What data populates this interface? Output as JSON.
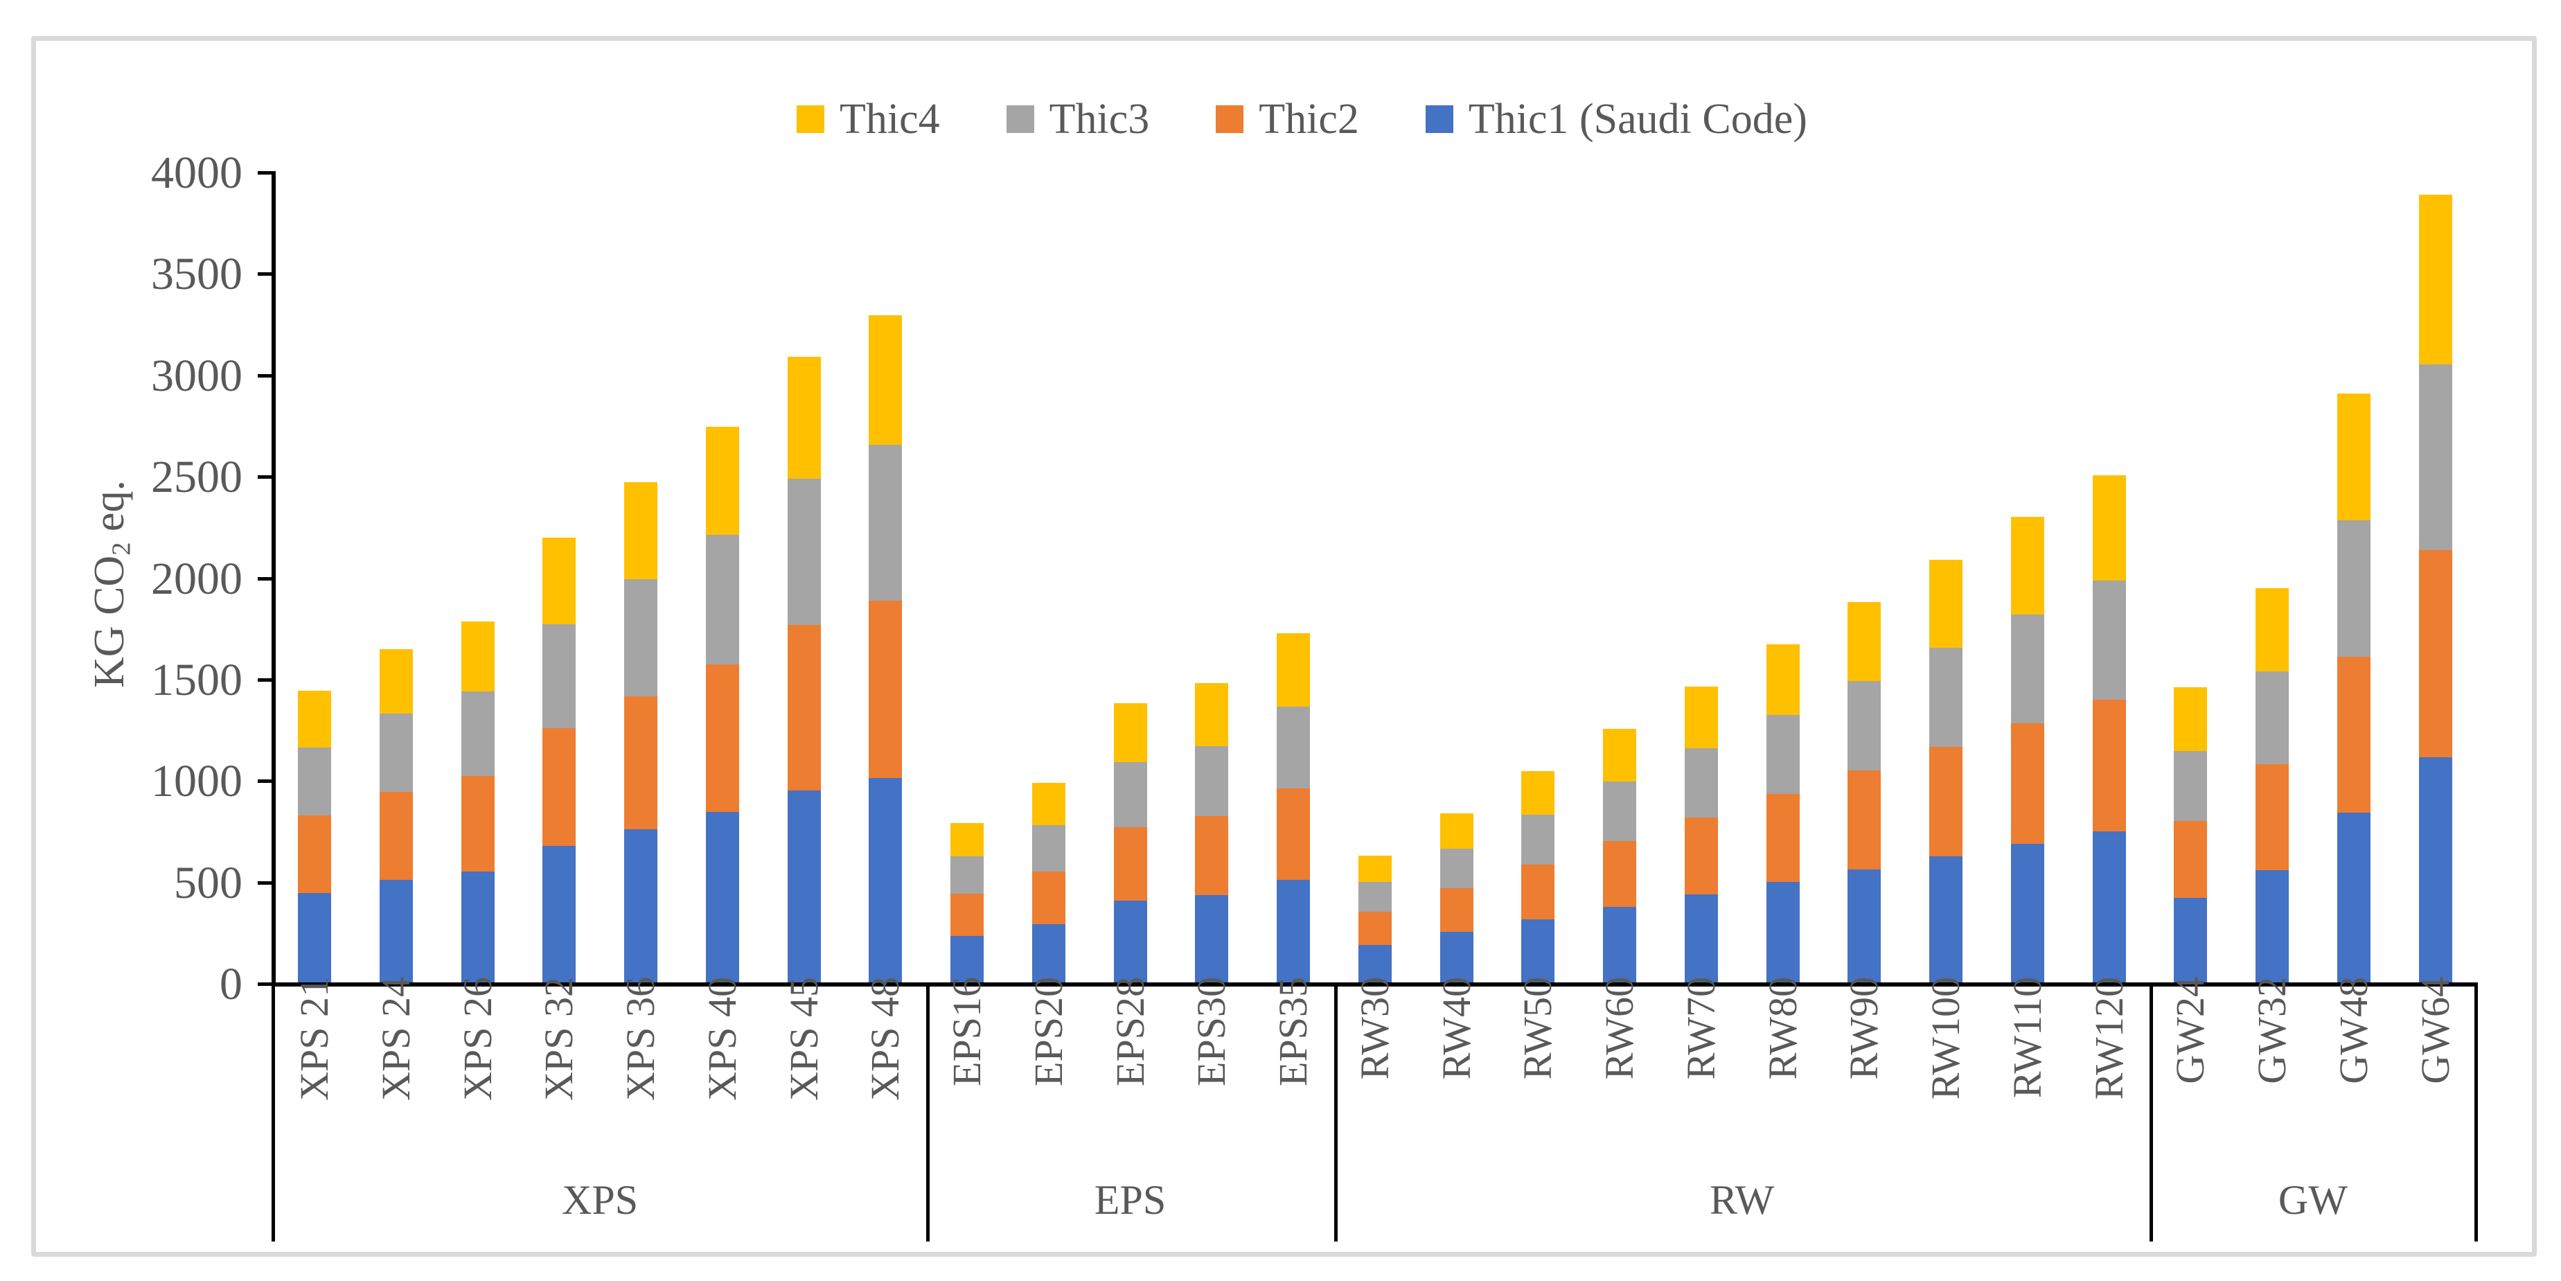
{
  "y_axis": {
    "title": "KG CO₂ eq.",
    "title_parts": [
      "KG CO",
      "2",
      " eq."
    ],
    "ticks": [
      "0",
      "500",
      "1000",
      "1500",
      "2000",
      "2500",
      "3000",
      "3500",
      "4000"
    ],
    "min": 0,
    "max": 4000,
    "tick_step": 500
  },
  "legend": [
    {
      "label": "Thic4",
      "color": "#FFC000"
    },
    {
      "label": "Thic3",
      "color": "#A5A5A5"
    },
    {
      "label": "Thic2",
      "color": "#ED7D31"
    },
    {
      "label": "Thic1 (Saudi Code)",
      "color": "#4472C4"
    }
  ],
  "colors": {
    "thic1": "#4472C4",
    "thic2": "#ED7D31",
    "thic3": "#A5A5A5",
    "thic4": "#FFC000",
    "axis": "#000000",
    "text": "#595959",
    "frame": "#D9D9D9",
    "background": "#FFFFFF"
  },
  "chart_data": {
    "type": "bar",
    "stacked": true,
    "title": "",
    "xlabel": "",
    "ylabel": "KG CO2 eq.",
    "ylim": [
      0,
      4000
    ],
    "grid": false,
    "legend_position": "top",
    "stack_order_bottom_to_top": [
      "thic1",
      "thic2",
      "thic3",
      "thic4"
    ],
    "series_labels": {
      "thic1": "Thic1 (Saudi Code)",
      "thic2": "Thic2",
      "thic3": "Thic3",
      "thic4": "Thic4"
    },
    "groups": [
      {
        "name": "XPS",
        "bars": [
          {
            "label": "XPS 21",
            "values": {
              "thic1": 441,
              "thic2": 382,
              "thic3": 336,
              "thic4": 280
            }
          },
          {
            "label": "XPS 24",
            "values": {
              "thic1": 504,
              "thic2": 437,
              "thic3": 384,
              "thic4": 319
            }
          },
          {
            "label": "XPS 26",
            "values": {
              "thic1": 546,
              "thic2": 473,
              "thic3": 416,
              "thic4": 346
            }
          },
          {
            "label": "XPS 32",
            "values": {
              "thic1": 672,
              "thic2": 582,
              "thic3": 512,
              "thic4": 426
            }
          },
          {
            "label": "XPS 36",
            "values": {
              "thic1": 756,
              "thic2": 655,
              "thic3": 576,
              "thic4": 479
            }
          },
          {
            "label": "XPS 40",
            "values": {
              "thic1": 840,
              "thic2": 728,
              "thic3": 640,
              "thic4": 532
            }
          },
          {
            "label": "XPS 45",
            "values": {
              "thic1": 945,
              "thic2": 819,
              "thic3": 720,
              "thic4": 599
            }
          },
          {
            "label": "XPS 48",
            "values": {
              "thic1": 1008,
              "thic2": 874,
              "thic3": 768,
              "thic4": 638
            }
          }
        ]
      },
      {
        "name": "EPS",
        "bars": [
          {
            "label": "EPS16",
            "values": {
              "thic1": 230,
              "thic2": 207,
              "thic3": 184,
              "thic4": 166
            }
          },
          {
            "label": "EPS20",
            "values": {
              "thic1": 288,
              "thic2": 258,
              "thic3": 230,
              "thic4": 208
            }
          },
          {
            "label": "EPS28",
            "values": {
              "thic1": 403,
              "thic2": 361,
              "thic3": 322,
              "thic4": 292
            }
          },
          {
            "label": "EPS30",
            "values": {
              "thic1": 432,
              "thic2": 387,
              "thic3": 345,
              "thic4": 312
            }
          },
          {
            "label": "EPS35",
            "values": {
              "thic1": 504,
              "thic2": 452,
              "thic3": 402,
              "thic4": 364
            }
          }
        ]
      },
      {
        "name": "RW",
        "bars": [
          {
            "label": "RW30",
            "values": {
              "thic1": 186,
              "thic2": 162,
              "thic3": 147,
              "thic4": 131
            }
          },
          {
            "label": "RW40",
            "values": {
              "thic1": 248,
              "thic2": 216,
              "thic3": 196,
              "thic4": 174
            }
          },
          {
            "label": "RW50",
            "values": {
              "thic1": 310,
              "thic2": 270,
              "thic3": 245,
              "thic4": 218
            }
          },
          {
            "label": "RW60",
            "values": {
              "thic1": 372,
              "thic2": 324,
              "thic3": 294,
              "thic4": 261
            }
          },
          {
            "label": "RW70",
            "values": {
              "thic1": 434,
              "thic2": 378,
              "thic3": 343,
              "thic4": 305
            }
          },
          {
            "label": "RW80",
            "values": {
              "thic1": 496,
              "thic2": 432,
              "thic3": 392,
              "thic4": 348
            }
          },
          {
            "label": "RW90",
            "values": {
              "thic1": 558,
              "thic2": 486,
              "thic3": 441,
              "thic4": 392
            }
          },
          {
            "label": "RW100",
            "values": {
              "thic1": 620,
              "thic2": 540,
              "thic3": 490,
              "thic4": 435
            }
          },
          {
            "label": "RW110",
            "values": {
              "thic1": 682,
              "thic2": 594,
              "thic3": 539,
              "thic4": 479
            }
          },
          {
            "label": "RW120",
            "values": {
              "thic1": 744,
              "thic2": 648,
              "thic3": 588,
              "thic4": 522
            }
          }
        ]
      },
      {
        "name": "GW",
        "bars": [
          {
            "label": "GW24",
            "values": {
              "thic1": 416,
              "thic2": 379,
              "thic3": 345,
              "thic4": 315
            }
          },
          {
            "label": "GW32",
            "values": {
              "thic1": 553,
              "thic2": 523,
              "thic3": 457,
              "thic4": 412
            }
          },
          {
            "label": "GW48",
            "values": {
              "thic1": 837,
              "thic2": 768,
              "thic3": 675,
              "thic4": 625
            }
          },
          {
            "label": "GW64",
            "values": {
              "thic1": 1110,
              "thic2": 1020,
              "thic3": 916,
              "thic4": 837
            }
          }
        ]
      }
    ]
  }
}
